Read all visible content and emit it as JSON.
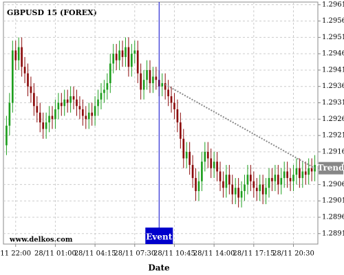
{
  "chart_data": {
    "type": "candlestick",
    "title": "GBPUSD 15 (FOREX)",
    "x_label": "Date",
    "watermark": "www.delkos.com",
    "x": [
      0,
      1,
      2,
      3,
      4,
      5,
      6,
      7,
      8,
      9,
      10,
      11,
      12,
      13,
      14,
      15,
      16,
      17,
      18,
      19,
      20,
      21,
      22,
      23,
      24,
      25,
      26,
      27,
      28,
      29,
      30,
      31,
      32,
      33,
      34,
      35,
      36,
      37,
      38,
      39,
      40,
      41,
      42,
      43,
      44,
      45,
      46,
      47,
      48,
      49,
      50,
      51,
      52,
      53,
      54,
      55,
      56,
      57,
      58,
      59,
      60,
      61,
      62,
      63,
      64,
      65,
      66,
      67,
      68,
      69,
      70,
      71,
      72,
      73,
      74,
      75,
      76,
      77,
      78,
      79,
      80,
      81,
      82,
      83,
      84,
      85,
      86,
      87,
      88,
      89,
      90,
      91,
      92,
      93,
      94,
      95,
      96,
      97,
      98,
      99,
      100,
      101
    ],
    "open": [
      1.2918,
      1.2924,
      1.2931,
      1.2947,
      1.2944,
      1.2948,
      1.2942,
      1.294,
      1.2936,
      1.2934,
      1.293,
      1.2928,
      1.2925,
      1.2923,
      1.2925,
      1.2927,
      1.2926,
      1.2929,
      1.2931,
      1.293,
      1.2932,
      1.2931,
      1.2933,
      1.2932,
      1.293,
      1.2929,
      1.2927,
      1.2926,
      1.2928,
      1.2927,
      1.293,
      1.2932,
      1.2934,
      1.2935,
      1.2937,
      1.2943,
      1.2946,
      1.2944,
      1.2947,
      1.2945,
      1.2948,
      1.2942,
      1.2946,
      1.2947,
      1.294,
      1.2935,
      1.2938,
      1.2941,
      1.2937,
      1.2939,
      1.2938,
      1.2936,
      1.2937,
      1.2935,
      1.2933,
      1.2931,
      1.2929,
      1.2925,
      1.292,
      1.2914,
      1.2916,
      1.2912,
      1.2908,
      1.2904,
      1.2907,
      1.2913,
      1.2916,
      1.2914,
      1.2911,
      1.2913,
      1.291,
      1.2907,
      1.2905,
      1.2909,
      1.2906,
      1.2903,
      1.2905,
      1.2902,
      1.2904,
      1.2906,
      1.2909,
      1.2907,
      1.2905,
      1.2904,
      1.2906,
      1.2903,
      1.2905,
      1.2908,
      1.2907,
      1.2909,
      1.2906,
      1.2908,
      1.291,
      1.2908,
      1.2907,
      1.2909,
      1.2911,
      1.2908,
      1.291,
      1.2909,
      1.2911,
      1.291
    ],
    "high": [
      1.2927,
      1.2934,
      1.295,
      1.295,
      1.2951,
      1.2951,
      1.2945,
      1.2943,
      1.2939,
      1.2937,
      1.2933,
      1.2931,
      1.2928,
      1.2928,
      1.293,
      1.293,
      1.2932,
      1.2934,
      1.2934,
      1.2935,
      1.2935,
      1.2936,
      1.2936,
      1.2935,
      1.2933,
      1.2932,
      1.293,
      1.2931,
      1.2931,
      1.2933,
      1.2935,
      1.2937,
      1.2938,
      1.294,
      1.2946,
      1.2949,
      1.2949,
      1.295,
      1.295,
      1.2951,
      1.2951,
      1.2949,
      1.295,
      1.295,
      1.2943,
      1.2941,
      1.2944,
      1.2944,
      1.2942,
      1.2942,
      1.2941,
      1.294,
      1.294,
      1.2938,
      1.2936,
      1.2934,
      1.2932,
      1.2928,
      1.2923,
      1.2919,
      1.2919,
      1.2915,
      1.2911,
      1.291,
      1.2916,
      1.2919,
      1.2919,
      1.2917,
      1.2916,
      1.2916,
      1.2913,
      1.291,
      1.2912,
      1.2912,
      1.2909,
      1.2908,
      1.2908,
      1.2907,
      1.2909,
      1.2912,
      1.2912,
      1.291,
      1.2908,
      1.2909,
      1.2909,
      1.2908,
      1.2911,
      1.2911,
      1.2912,
      1.2912,
      1.2911,
      1.2913,
      1.2913,
      1.2911,
      1.2912,
      1.2914,
      1.2914,
      1.2913,
      1.2913,
      1.2914,
      1.2914,
      1.2915
    ],
    "low": [
      1.2915,
      1.2921,
      1.2928,
      1.2941,
      1.2941,
      1.2939,
      1.2937,
      1.2933,
      1.2931,
      1.2927,
      1.2925,
      1.2922,
      1.292,
      1.292,
      1.2922,
      1.2923,
      1.2923,
      1.2926,
      1.2927,
      1.2927,
      1.2928,
      1.2928,
      1.2929,
      1.2927,
      1.2926,
      1.2924,
      1.2923,
      1.2923,
      1.2924,
      1.2924,
      1.2927,
      1.2929,
      1.2931,
      1.2932,
      1.2934,
      1.294,
      1.2941,
      1.2941,
      1.2942,
      1.2942,
      1.2939,
      1.2939,
      1.2943,
      1.2937,
      1.2932,
      1.2932,
      1.2935,
      1.2934,
      1.2934,
      1.2935,
      1.2933,
      1.2933,
      1.2932,
      1.293,
      1.2928,
      1.2926,
      1.2922,
      1.2917,
      1.2911,
      1.2911,
      1.2909,
      1.2905,
      1.2901,
      1.2901,
      1.2904,
      1.291,
      1.2911,
      1.2908,
      1.2908,
      1.2907,
      1.2904,
      1.2902,
      1.2902,
      1.2903,
      1.29,
      1.29,
      1.2899,
      1.2899,
      1.2901,
      1.2903,
      1.2904,
      1.2902,
      1.2901,
      1.2901,
      1.29,
      1.29,
      1.2902,
      1.2904,
      1.2904,
      1.2903,
      1.2903,
      1.2905,
      1.2905,
      1.2904,
      1.2904,
      1.2906,
      1.2905,
      1.2905,
      1.2906,
      1.2906,
      1.2907,
      1.2907
    ],
    "close": [
      1.2924,
      1.2931,
      1.2947,
      1.2944,
      1.2948,
      1.2942,
      1.294,
      1.2936,
      1.2934,
      1.293,
      1.2928,
      1.2925,
      1.2923,
      1.2925,
      1.2927,
      1.2926,
      1.2929,
      1.2931,
      1.293,
      1.2932,
      1.2931,
      1.2933,
      1.2932,
      1.293,
      1.2929,
      1.2927,
      1.2926,
      1.2928,
      1.2927,
      1.293,
      1.2932,
      1.2934,
      1.2935,
      1.2937,
      1.2943,
      1.2946,
      1.2944,
      1.2947,
      1.2945,
      1.2948,
      1.2942,
      1.2946,
      1.2947,
      1.294,
      1.2935,
      1.2938,
      1.2941,
      1.2937,
      1.2939,
      1.2938,
      1.2936,
      1.2937,
      1.2935,
      1.2933,
      1.2931,
      1.2929,
      1.2925,
      1.292,
      1.2914,
      1.2916,
      1.2912,
      1.2908,
      1.2904,
      1.2907,
      1.2913,
      1.2916,
      1.2914,
      1.2911,
      1.2913,
      1.291,
      1.2907,
      1.2905,
      1.2909,
      1.2906,
      1.2903,
      1.2905,
      1.2902,
      1.2904,
      1.2906,
      1.2909,
      1.2907,
      1.2905,
      1.2904,
      1.2906,
      1.2903,
      1.2905,
      1.2908,
      1.2907,
      1.2909,
      1.2906,
      1.2908,
      1.291,
      1.2908,
      1.2907,
      1.2909,
      1.2911,
      1.2908,
      1.291,
      1.2909,
      1.2911,
      1.291,
      1.2912
    ],
    "up_color": "#1e9e1e",
    "down_color": "#8b0a0a",
    "xlim": [
      -1,
      102
    ],
    "xticks": [
      {
        "value": 3,
        "label": "11 22:00"
      },
      {
        "value": 16,
        "label": "28/11 01:00"
      },
      {
        "value": 29,
        "label": "28/11 04:15"
      },
      {
        "value": 42,
        "label": "28/11 07:30"
      },
      {
        "value": 55,
        "label": "28/11 10:45"
      },
      {
        "value": 68,
        "label": "28/11 14:00"
      },
      {
        "value": 81,
        "label": "28/11 17:15"
      },
      {
        "value": 94,
        "label": "28/11 20:30"
      }
    ],
    "ylim": [
      1.28878,
      1.29618
    ],
    "yticks": [
      1.2891,
      1.2896,
      1.2901,
      1.2906,
      1.2911,
      1.2916,
      1.2921,
      1.2926,
      1.2931,
      1.2936,
      1.2941,
      1.2946,
      1.2951,
      1.2956,
      1.2961
    ],
    "grid": true,
    "event": {
      "label": "Event",
      "x": 50,
      "color": "#0000cc"
    },
    "trend": {
      "label": "Trend",
      "x": [
        52,
        101
      ],
      "y": [
        1.29366,
        1.2911
      ],
      "color": "#888888"
    }
  }
}
